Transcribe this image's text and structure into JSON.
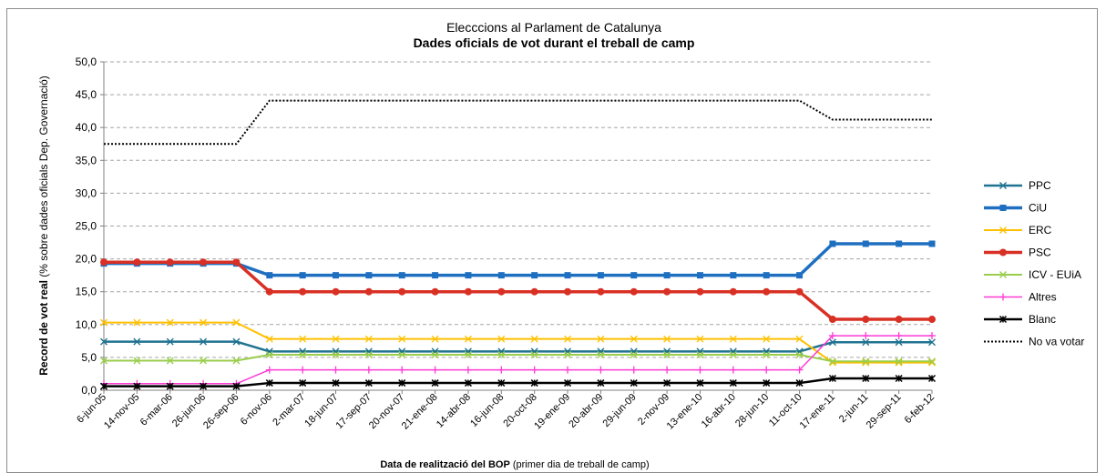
{
  "chart_data": {
    "type": "line",
    "title": "Elecccions al Parlament de Catalunya",
    "subtitle": "Dades oficials de vot durant el treball de camp",
    "xlabel_bold": "Data de realització del BOP",
    "xlabel_rest": " (primer dia de treball de camp)",
    "ylabel_bold": "Record de vot real",
    "ylabel_rest": " (% sobre dades oficials Dep. Governació)",
    "ylim": [
      0,
      50
    ],
    "ytick_labels": [
      "0,0",
      "5,0",
      "10,0",
      "15,0",
      "20,0",
      "25,0",
      "30,0",
      "35,0",
      "40,0",
      "45,0",
      "50,0"
    ],
    "grid": true,
    "legend_position": "right",
    "categories": [
      "6-jun-05",
      "14-nov-05",
      "6-mar-06",
      "26-jun-06",
      "26-sep-06",
      "6-nov-06",
      "2-mar-07",
      "18-jun-07",
      "17-sep-07",
      "20-nov-07",
      "21-ene-08",
      "14-abr-08",
      "16-jun-08",
      "20-oct-08",
      "19-ene-09",
      "20-abr-09",
      "29-jun-09",
      "2-nov-09",
      "13-ene-10",
      "16-abr-10",
      "28-jun-10",
      "11-oct-10",
      "17-ene-11",
      "2-jun-11",
      "29-sep-11",
      "6-feb-12"
    ],
    "series": [
      {
        "name": "PPC",
        "color": "#1f7391",
        "marker": "x",
        "width": 2.5,
        "values": [
          7.4,
          7.4,
          7.4,
          7.4,
          7.4,
          5.9,
          5.9,
          5.9,
          5.9,
          5.9,
          5.9,
          5.9,
          5.9,
          5.9,
          5.9,
          5.9,
          5.9,
          5.9,
          5.9,
          5.9,
          5.9,
          5.9,
          7.3,
          7.3,
          7.3,
          7.3
        ]
      },
      {
        "name": "CiU",
        "color": "#1f6fc1",
        "marker": "square",
        "width": 3.5,
        "values": [
          19.3,
          19.3,
          19.3,
          19.3,
          19.3,
          17.5,
          17.5,
          17.5,
          17.5,
          17.5,
          17.5,
          17.5,
          17.5,
          17.5,
          17.5,
          17.5,
          17.5,
          17.5,
          17.5,
          17.5,
          17.5,
          17.5,
          22.3,
          22.3,
          22.3,
          22.3
        ]
      },
      {
        "name": "ERC",
        "color": "#ffc000",
        "marker": "x",
        "width": 2,
        "values": [
          10.3,
          10.3,
          10.3,
          10.3,
          10.3,
          7.8,
          7.8,
          7.8,
          7.8,
          7.8,
          7.8,
          7.8,
          7.8,
          7.8,
          7.8,
          7.8,
          7.8,
          7.8,
          7.8,
          7.8,
          7.8,
          7.8,
          4.2,
          4.2,
          4.2,
          4.2
        ]
      },
      {
        "name": "PSC",
        "color": "#d93025",
        "marker": "circle",
        "width": 3.5,
        "values": [
          19.5,
          19.5,
          19.5,
          19.5,
          19.5,
          15.0,
          15.0,
          15.0,
          15.0,
          15.0,
          15.0,
          15.0,
          15.0,
          15.0,
          15.0,
          15.0,
          15.0,
          15.0,
          15.0,
          15.0,
          15.0,
          15.0,
          10.8,
          10.8,
          10.8,
          10.8
        ]
      },
      {
        "name": "ICV - EUiA",
        "color": "#9acd4b",
        "marker": "x",
        "width": 2,
        "values": [
          4.5,
          4.5,
          4.5,
          4.5,
          4.5,
          5.4,
          5.4,
          5.4,
          5.4,
          5.4,
          5.4,
          5.4,
          5.4,
          5.4,
          5.4,
          5.4,
          5.4,
          5.4,
          5.4,
          5.4,
          5.4,
          5.4,
          4.4,
          4.4,
          4.4,
          4.4
        ]
      },
      {
        "name": "Altres",
        "color": "#ff3bd6",
        "marker": "plus",
        "width": 1.5,
        "values": [
          1.0,
          1.0,
          1.0,
          1.0,
          1.0,
          3.1,
          3.1,
          3.1,
          3.1,
          3.1,
          3.1,
          3.1,
          3.1,
          3.1,
          3.1,
          3.1,
          3.1,
          3.1,
          3.1,
          3.1,
          3.1,
          3.1,
          8.3,
          8.3,
          8.3,
          8.3
        ]
      },
      {
        "name": "Blanc",
        "color": "#000000",
        "marker": "star",
        "width": 2.5,
        "values": [
          0.6,
          0.6,
          0.6,
          0.6,
          0.6,
          1.1,
          1.1,
          1.1,
          1.1,
          1.1,
          1.1,
          1.1,
          1.1,
          1.1,
          1.1,
          1.1,
          1.1,
          1.1,
          1.1,
          1.1,
          1.1,
          1.1,
          1.8,
          1.8,
          1.8,
          1.8
        ]
      },
      {
        "name": "No va votar",
        "color": "#000000",
        "marker": "none",
        "dotted": true,
        "width": 2,
        "values": [
          37.5,
          37.5,
          37.5,
          37.5,
          37.5,
          44.1,
          44.1,
          44.1,
          44.1,
          44.1,
          44.1,
          44.1,
          44.1,
          44.1,
          44.1,
          44.1,
          44.1,
          44.1,
          44.1,
          44.1,
          44.1,
          44.1,
          41.2,
          41.2,
          41.2,
          41.2
        ]
      }
    ]
  }
}
